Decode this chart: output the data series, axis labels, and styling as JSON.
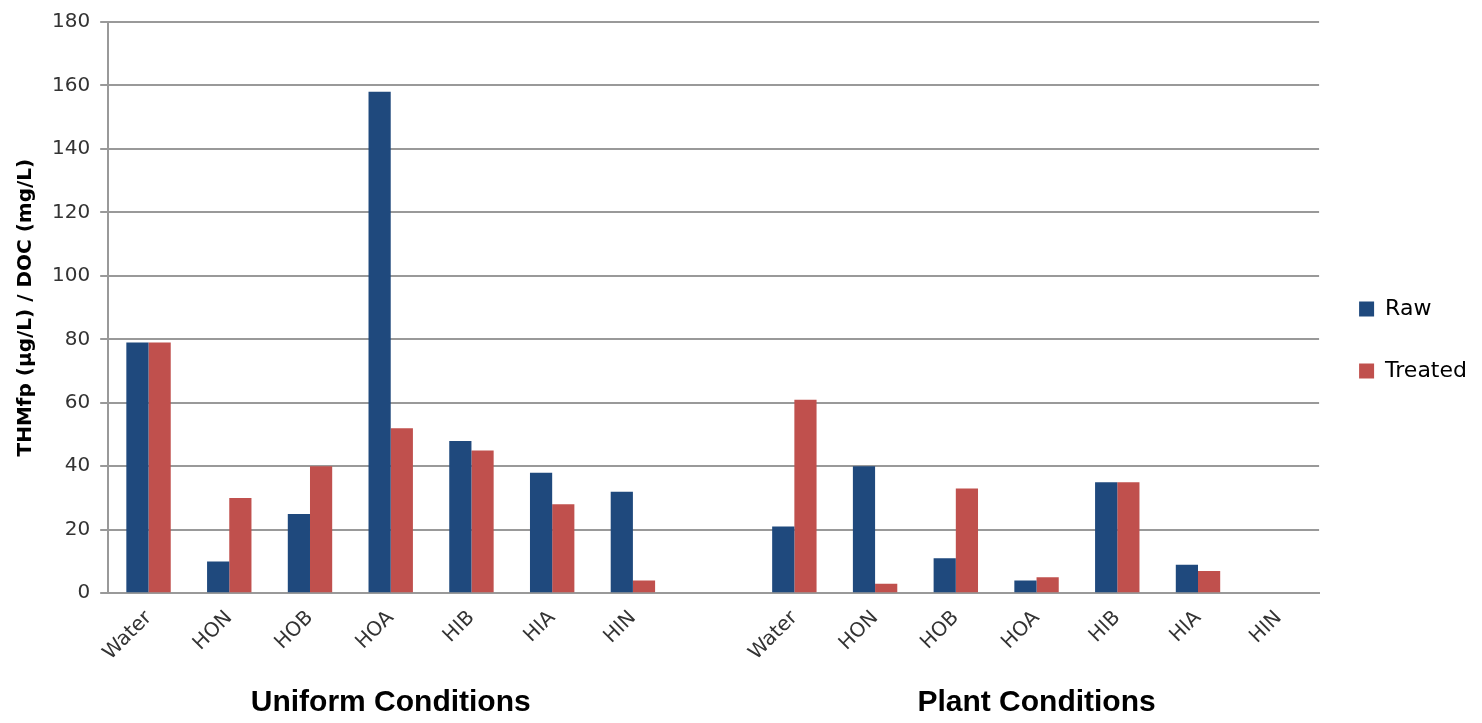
{
  "chart_data": {
    "type": "bar",
    "ylabel": "THMfp (µg/L) / DOC (mg/L)",
    "categories": [
      "Water",
      "HON",
      "HOB",
      "HOA",
      "HIB",
      "HIA",
      "HIN",
      null,
      "Water",
      "HON",
      "HOB",
      "HOA",
      "HIB",
      "HIA",
      "HIN"
    ],
    "series": [
      {
        "name": "Raw",
        "color": "#1f497d",
        "values": [
          79,
          10,
          25,
          158,
          48,
          38,
          32,
          null,
          21,
          40,
          11,
          4,
          35,
          9,
          null
        ]
      },
      {
        "name": "Treated",
        "color": "#c0504d",
        "values": [
          79,
          30,
          40,
          52,
          45,
          28,
          4,
          null,
          61,
          3,
          33,
          5,
          35,
          7,
          null
        ]
      }
    ],
    "ylim": [
      0,
      180
    ],
    "yticks": [
      0,
      20,
      40,
      60,
      80,
      100,
      120,
      140,
      160,
      180
    ],
    "grid": "y",
    "legend": "right",
    "annotations": [
      "Uniform Conditions",
      "Plant Conditions"
    ]
  }
}
